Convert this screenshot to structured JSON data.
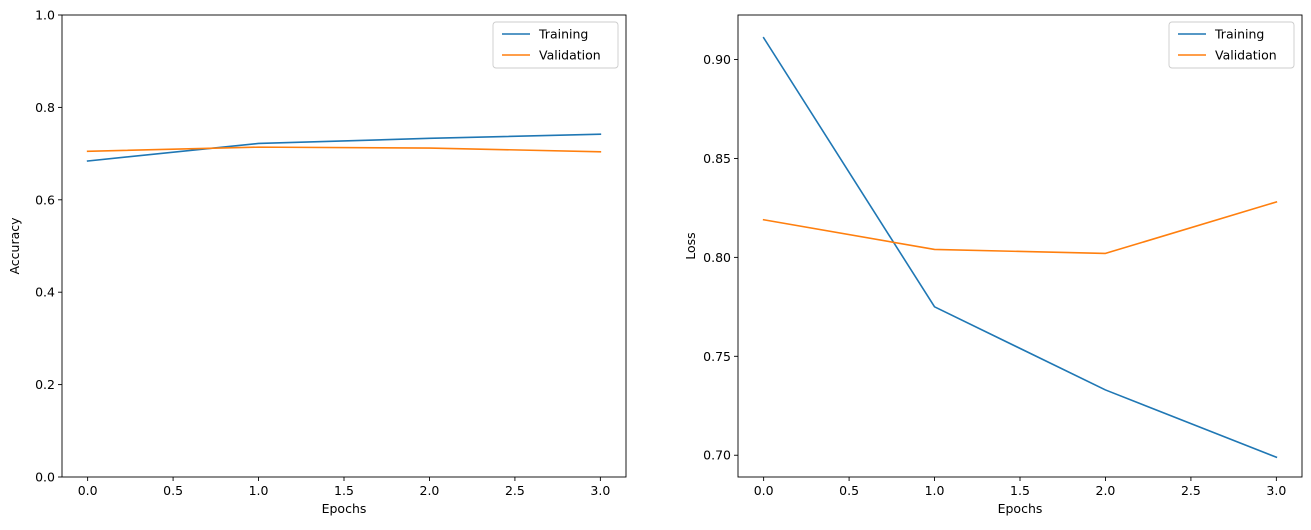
{
  "chart_data": [
    {
      "type": "line",
      "xlabel": "Epochs",
      "ylabel": "Accuracy",
      "x": [
        0,
        1,
        2,
        3
      ],
      "xlim": [
        -0.15,
        3.15
      ],
      "ylim": [
        0,
        1.0
      ],
      "xticks": [
        0.0,
        0.5,
        1.0,
        1.5,
        2.0,
        2.5,
        3.0
      ],
      "xtick_labels": [
        "0.0",
        "0.5",
        "1.0",
        "1.5",
        "2.0",
        "2.5",
        "3.0"
      ],
      "yticks": [
        0.0,
        0.2,
        0.4,
        0.6,
        0.8,
        1.0
      ],
      "ytick_labels": [
        "0.0",
        "0.2",
        "0.4",
        "0.6",
        "0.8",
        "1.0"
      ],
      "grid": false,
      "legend_position": "top-right",
      "series": [
        {
          "name": "Training",
          "color": "#1f77b4",
          "values": [
            0.684,
            0.722,
            0.733,
            0.742
          ]
        },
        {
          "name": "Validation",
          "color": "#ff7f0e",
          "values": [
            0.705,
            0.714,
            0.712,
            0.704
          ]
        }
      ]
    },
    {
      "type": "line",
      "xlabel": "Epochs",
      "ylabel": "Loss",
      "x": [
        0,
        1,
        2,
        3
      ],
      "xlim": [
        -0.15,
        3.15
      ],
      "ylim": [
        0.689,
        0.9225
      ],
      "xticks": [
        0.0,
        0.5,
        1.0,
        1.5,
        2.0,
        2.5,
        3.0
      ],
      "xtick_labels": [
        "0.0",
        "0.5",
        "1.0",
        "1.5",
        "2.0",
        "2.5",
        "3.0"
      ],
      "yticks": [
        0.7,
        0.75,
        0.8,
        0.85,
        0.9
      ],
      "ytick_labels": [
        "0.70",
        "0.75",
        "0.80",
        "0.85",
        "0.90"
      ],
      "grid": false,
      "legend_position": "top-right",
      "series": [
        {
          "name": "Training",
          "color": "#1f77b4",
          "values": [
            0.911,
            0.775,
            0.733,
            0.699
          ]
        },
        {
          "name": "Validation",
          "color": "#ff7f0e",
          "values": [
            0.819,
            0.804,
            0.802,
            0.828
          ]
        }
      ]
    }
  ]
}
